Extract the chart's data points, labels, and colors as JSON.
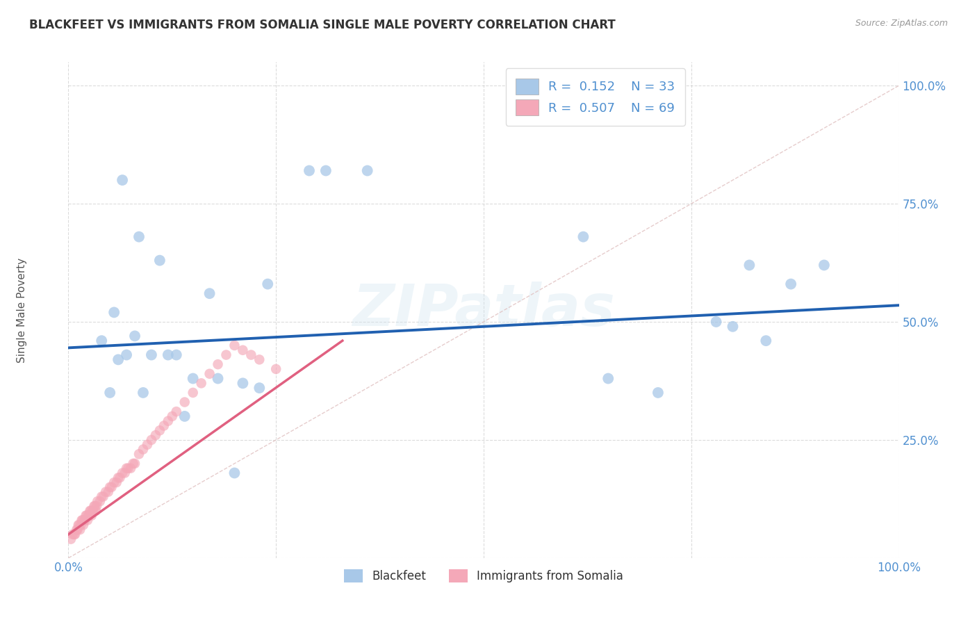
{
  "title": "BLACKFEET VS IMMIGRANTS FROM SOMALIA SINGLE MALE POVERTY CORRELATION CHART",
  "source": "Source: ZipAtlas.com",
  "ylabel": "Single Male Poverty",
  "watermark": "ZIPatlas",
  "blue_color": "#a8c8e8",
  "pink_color": "#f4a8b8",
  "blue_line_color": "#2060b0",
  "pink_line_color": "#e06080",
  "diag_line_color": "#e0c0c0",
  "axis_tick_color": "#5090d0",
  "title_color": "#333333",
  "background_color": "#ffffff",
  "legend_label1": "Blackfeet",
  "legend_label2": "Immigrants from Somalia",
  "blue_trend_x0": 0.0,
  "blue_trend_y0": 0.445,
  "blue_trend_x1": 1.0,
  "blue_trend_y1": 0.535,
  "pink_trend_x0": 0.0,
  "pink_trend_y0": 0.05,
  "pink_trend_x1": 0.33,
  "pink_trend_y1": 0.46,
  "blue_x": [
    0.29,
    0.31,
    0.36,
    0.065,
    0.085,
    0.11,
    0.055,
    0.08,
    0.17,
    0.24,
    0.62,
    0.82,
    0.87,
    0.91,
    0.65,
    0.71,
    0.78,
    0.8,
    0.84,
    0.04,
    0.06,
    0.07,
    0.1,
    0.12,
    0.13,
    0.15,
    0.18,
    0.21,
    0.23,
    0.05,
    0.09,
    0.14,
    0.2
  ],
  "blue_y": [
    0.82,
    0.82,
    0.82,
    0.8,
    0.68,
    0.63,
    0.52,
    0.47,
    0.56,
    0.58,
    0.68,
    0.62,
    0.58,
    0.62,
    0.38,
    0.35,
    0.5,
    0.49,
    0.46,
    0.46,
    0.42,
    0.43,
    0.43,
    0.43,
    0.43,
    0.38,
    0.38,
    0.37,
    0.36,
    0.35,
    0.35,
    0.3,
    0.18
  ],
  "pink_x": [
    0.003,
    0.005,
    0.007,
    0.008,
    0.01,
    0.011,
    0.012,
    0.013,
    0.014,
    0.015,
    0.016,
    0.017,
    0.018,
    0.019,
    0.02,
    0.021,
    0.022,
    0.023,
    0.024,
    0.025,
    0.026,
    0.027,
    0.028,
    0.029,
    0.03,
    0.031,
    0.032,
    0.033,
    0.034,
    0.035,
    0.038,
    0.04,
    0.042,
    0.045,
    0.048,
    0.05,
    0.052,
    0.055,
    0.058,
    0.06,
    0.062,
    0.065,
    0.068,
    0.07,
    0.072,
    0.075,
    0.078,
    0.08,
    0.085,
    0.09,
    0.095,
    0.1,
    0.105,
    0.11,
    0.115,
    0.12,
    0.125,
    0.13,
    0.14,
    0.15,
    0.16,
    0.17,
    0.18,
    0.19,
    0.2,
    0.21,
    0.22,
    0.23,
    0.25
  ],
  "pink_y": [
    0.04,
    0.05,
    0.05,
    0.05,
    0.06,
    0.06,
    0.07,
    0.07,
    0.06,
    0.07,
    0.08,
    0.08,
    0.07,
    0.08,
    0.08,
    0.09,
    0.09,
    0.08,
    0.09,
    0.09,
    0.1,
    0.1,
    0.09,
    0.1,
    0.1,
    0.11,
    0.11,
    0.1,
    0.11,
    0.12,
    0.12,
    0.13,
    0.13,
    0.14,
    0.14,
    0.15,
    0.15,
    0.16,
    0.16,
    0.17,
    0.17,
    0.18,
    0.18,
    0.19,
    0.19,
    0.19,
    0.2,
    0.2,
    0.22,
    0.23,
    0.24,
    0.25,
    0.26,
    0.27,
    0.28,
    0.29,
    0.3,
    0.31,
    0.33,
    0.35,
    0.37,
    0.39,
    0.41,
    0.43,
    0.45,
    0.44,
    0.43,
    0.42,
    0.4
  ],
  "xlim": [
    0,
    1
  ],
  "ylim": [
    0,
    1.05
  ],
  "xticks": [
    0,
    0.25,
    0.5,
    0.75,
    1.0
  ],
  "yticks": [
    0,
    0.25,
    0.5,
    0.75,
    1.0
  ],
  "xtick_labels": [
    "0.0%",
    "",
    "",
    "",
    "100.0%"
  ],
  "ytick_labels": [
    "",
    "25.0%",
    "50.0%",
    "75.0%",
    "100.0%"
  ]
}
